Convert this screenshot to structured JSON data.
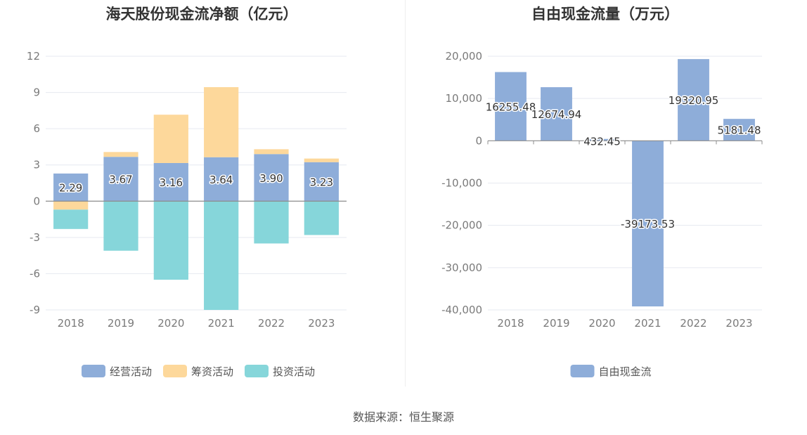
{
  "footer": {
    "source": "数据来源：恒生聚源"
  },
  "chart_data": [
    {
      "type": "bar",
      "stacked": true,
      "title": "海天股份现金流净额（亿元）",
      "categories": [
        "2018",
        "2019",
        "2020",
        "2021",
        "2022",
        "2023"
      ],
      "ylim": [
        -9,
        12
      ],
      "yticks": [
        -9,
        -6,
        -3,
        0,
        3,
        6,
        9,
        12
      ],
      "legend_position": "bottom",
      "grid": true,
      "series": [
        {
          "name": "经营活动",
          "color": "#8eadd9",
          "values": [
            2.29,
            3.67,
            3.16,
            3.64,
            3.9,
            3.23
          ],
          "labels": [
            "2.29",
            "3.67",
            "3.16",
            "3.64",
            "3.90",
            "3.23"
          ]
        },
        {
          "name": "筹资活动",
          "color": "#fdd89b",
          "values": [
            -0.7,
            0.4,
            4.0,
            5.8,
            0.4,
            0.3
          ]
        },
        {
          "name": "投资活动",
          "color": "#86d6da",
          "values": [
            -1.6,
            -4.1,
            -6.5,
            -9.0,
            -3.5,
            -2.8
          ]
        }
      ]
    },
    {
      "type": "bar",
      "title": "自由现金流量（万元）",
      "categories": [
        "2018",
        "2019",
        "2020",
        "2021",
        "2022",
        "2023"
      ],
      "ylim": [
        -40000,
        20000
      ],
      "yticks": [
        -40000,
        -30000,
        -20000,
        -10000,
        0,
        10000,
        20000
      ],
      "ytick_labels": [
        "-40,000",
        "-30,000",
        "-20,000",
        "-10,000",
        "0",
        "10,000",
        "20,000"
      ],
      "legend_position": "bottom",
      "grid": true,
      "series": [
        {
          "name": "自由现金流",
          "color": "#8eadd9",
          "values": [
            16255.48,
            12674.94,
            432.45,
            -39173.53,
            19320.95,
            5181.48
          ],
          "labels": [
            "16255.48",
            "12674.94",
            "432.45",
            "-39173.53",
            "19320.95",
            "5181.48"
          ]
        }
      ]
    }
  ]
}
